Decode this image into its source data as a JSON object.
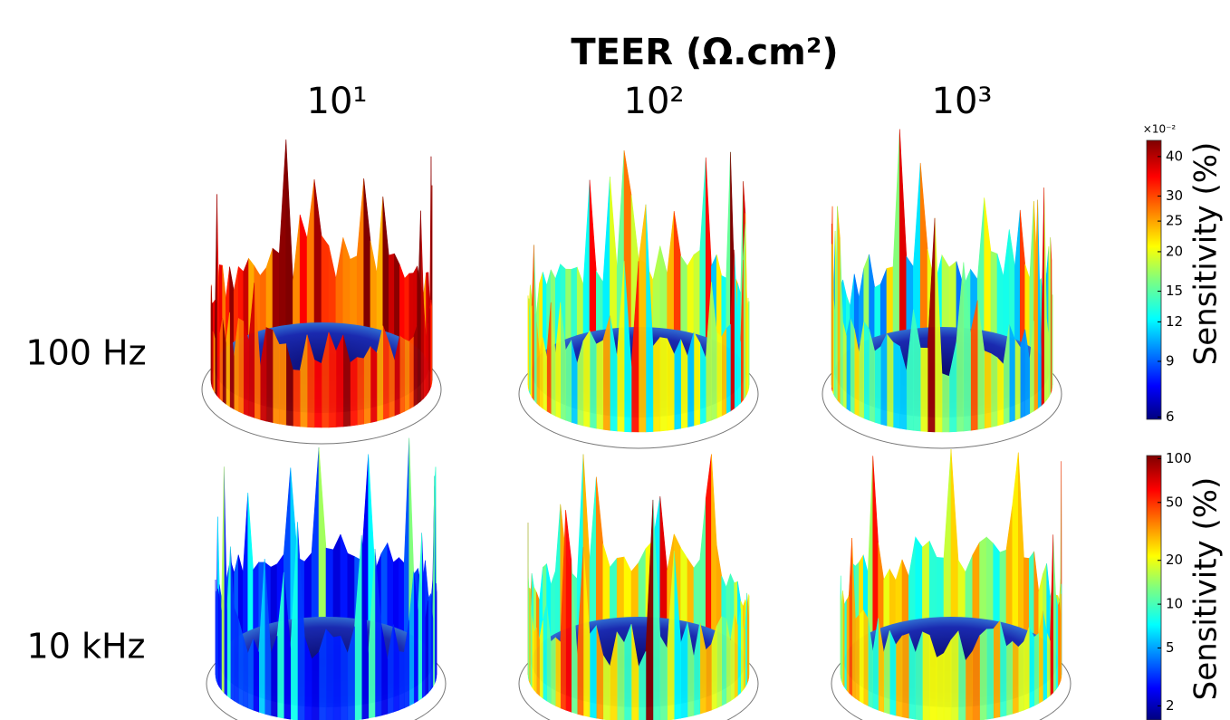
{
  "title": "TEER (Ω.cm²)",
  "columns": [
    "10¹",
    "10²",
    "10³"
  ],
  "rows": [
    "100 Hz",
    "10 kHz"
  ],
  "colorbars": [
    {
      "label": "Sensitivity (%)",
      "multiplier": "×10⁻²",
      "log": true,
      "lim": [
        5.9,
        45
      ],
      "ticks": [
        40,
        30,
        25,
        20,
        15,
        12,
        9,
        6
      ]
    },
    {
      "label": "Sensitivity (%)",
      "log": true,
      "lim": [
        1.6,
        105
      ],
      "ticks": [
        100,
        50,
        20,
        10,
        5,
        2
      ]
    }
  ]
}
